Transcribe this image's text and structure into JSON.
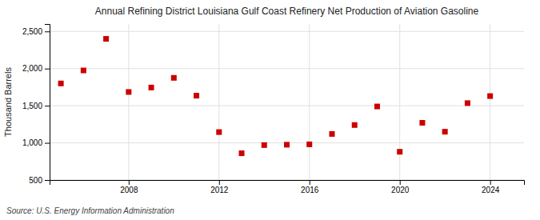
{
  "chart_data": {
    "type": "scatter",
    "title": "Annual Refining District Louisiana Gulf Coast Refinery Net Production of Aviation Gasoline",
    "y_label": "Thousand Barrels",
    "source": "Source: U.S. Energy Information Administration",
    "x": [
      2005,
      2006,
      2007,
      2008,
      2009,
      2010,
      2011,
      2012,
      2013,
      2014,
      2015,
      2016,
      2017,
      2018,
      2019,
      2020,
      2021,
      2022,
      2023,
      2024
    ],
    "values": [
      1800,
      1975,
      2400,
      1685,
      1745,
      1875,
      1635,
      1145,
      860,
      970,
      975,
      980,
      1120,
      1240,
      1490,
      880,
      1270,
      1150,
      1535,
      1630
    ],
    "color": "#cc0000",
    "marker": "square",
    "xlim": [
      2004.5,
      2025.5
    ],
    "xticks": [
      2008,
      2012,
      2016,
      2020,
      2024
    ],
    "ylim": [
      500,
      2600
    ],
    "yticks": [
      500,
      {
        "value": 1000,
        "label": "1,000"
      },
      {
        "value": 1500,
        "label": "1,500"
      },
      {
        "value": 2000,
        "label": "2,000"
      },
      {
        "value": 2500,
        "label": "2,500"
      }
    ],
    "grid": true
  }
}
